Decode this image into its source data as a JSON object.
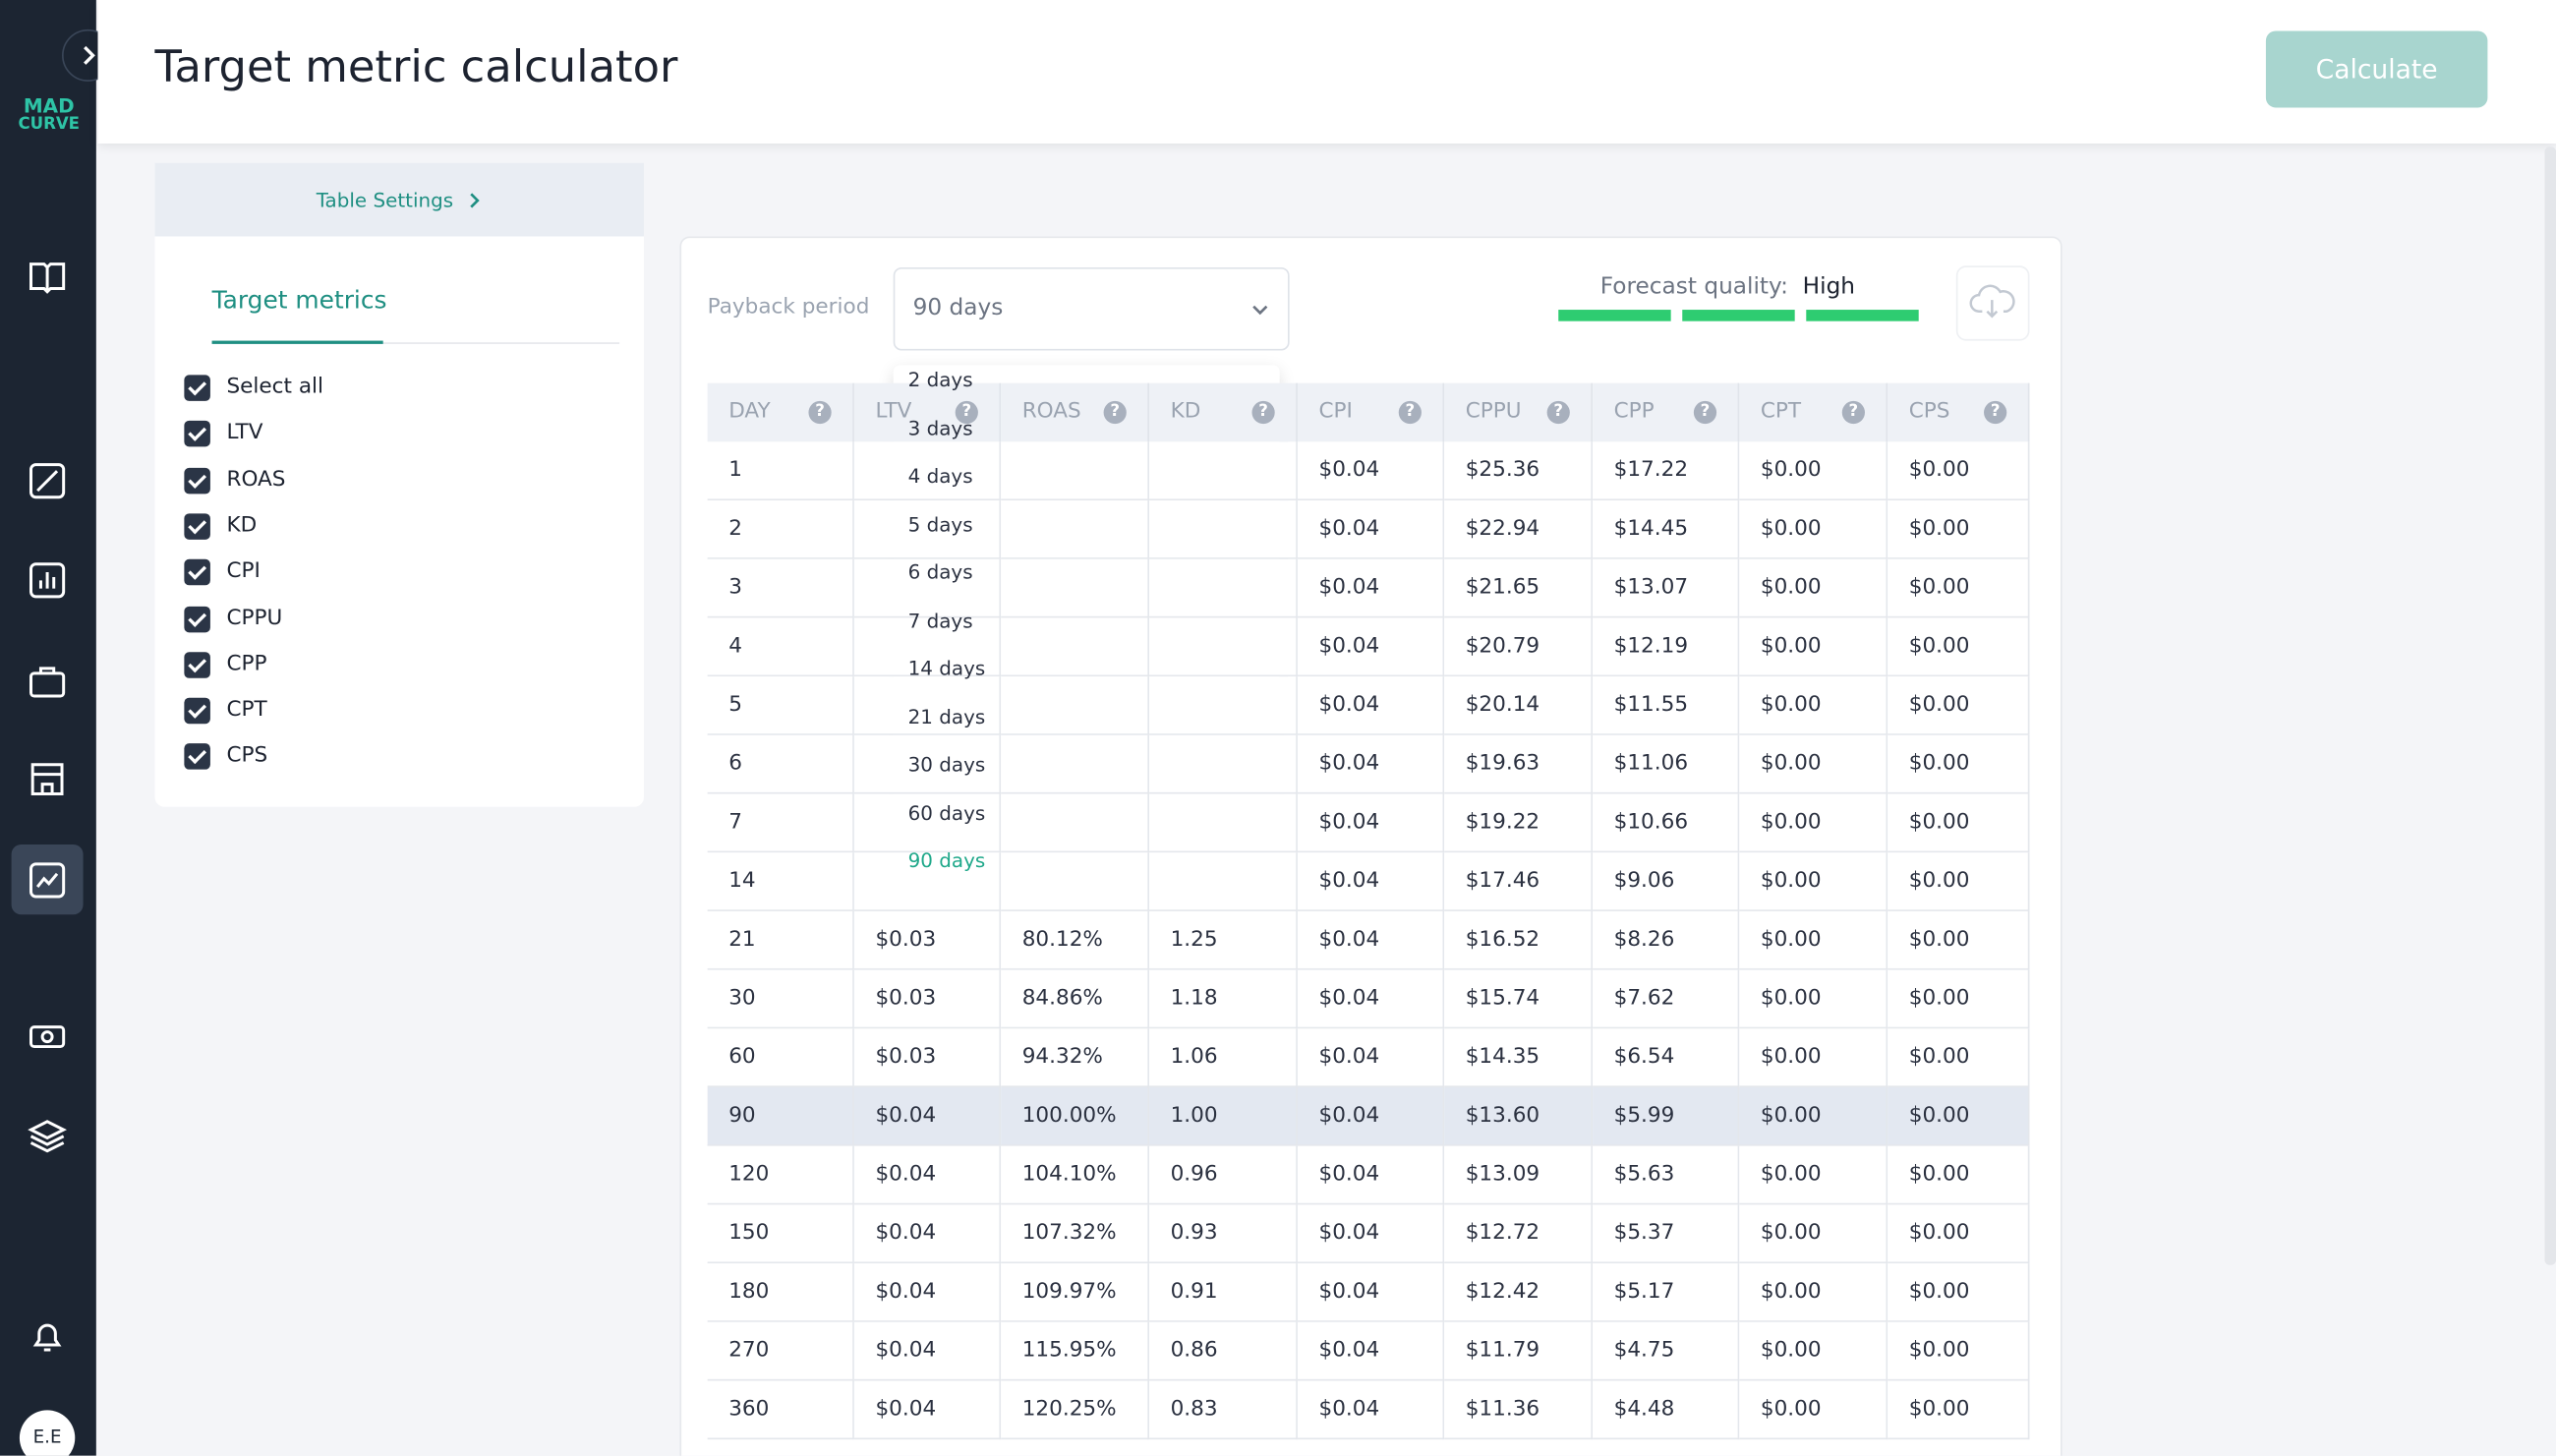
{
  "sidebar": {
    "logo": [
      "MAD",
      "CURVE"
    ],
    "avatar": "E.E"
  },
  "header": {
    "title": "Target metric calculator",
    "button": "Calculate"
  },
  "settings": {
    "link": "Table Settings",
    "panel_title": "Target metrics",
    "options": [
      "Select all",
      "LTV",
      "ROAS",
      "KD",
      "CPI",
      "CPPU",
      "CPP",
      "CPT",
      "CPS"
    ]
  },
  "controls": {
    "payback_label": "Payback period",
    "payback_value": "90 days",
    "forecast_label": "Forecast quality:",
    "forecast_value": "High"
  },
  "dropdown": {
    "options": [
      "2 days",
      "3 days",
      "4 days",
      "5 days",
      "6 days",
      "7 days",
      "14 days",
      "21 days",
      "30 days",
      "60 days",
      "90 days"
    ],
    "selected": 10
  },
  "table": {
    "columns": [
      "DAY",
      "LTV",
      "ROAS",
      "KD",
      "CPI",
      "CPPU",
      "CPP",
      "CPT",
      "CPS"
    ],
    "rows": [
      [
        "1",
        null,
        null,
        null,
        "$0.04",
        "$25.36",
        "$17.22",
        "$0.00",
        "$0.00"
      ],
      [
        "2",
        null,
        null,
        null,
        "$0.04",
        "$22.94",
        "$14.45",
        "$0.00",
        "$0.00"
      ],
      [
        "3",
        null,
        null,
        null,
        "$0.04",
        "$21.65",
        "$13.07",
        "$0.00",
        "$0.00"
      ],
      [
        "4",
        null,
        null,
        null,
        "$0.04",
        "$20.79",
        "$12.19",
        "$0.00",
        "$0.00"
      ],
      [
        "5",
        null,
        null,
        null,
        "$0.04",
        "$20.14",
        "$11.55",
        "$0.00",
        "$0.00"
      ],
      [
        "6",
        null,
        null,
        null,
        "$0.04",
        "$19.63",
        "$11.06",
        "$0.00",
        "$0.00"
      ],
      [
        "7",
        null,
        null,
        null,
        "$0.04",
        "$19.22",
        "$10.66",
        "$0.00",
        "$0.00"
      ],
      [
        "14",
        null,
        null,
        null,
        "$0.04",
        "$17.46",
        "$9.06",
        "$0.00",
        "$0.00"
      ],
      [
        "21",
        "$0.03",
        "80.12%",
        "1.25",
        "$0.04",
        "$16.52",
        "$8.26",
        "$0.00",
        "$0.00"
      ],
      [
        "30",
        "$0.03",
        "84.86%",
        "1.18",
        "$0.04",
        "$15.74",
        "$7.62",
        "$0.00",
        "$0.00"
      ],
      [
        "60",
        "$0.03",
        "94.32%",
        "1.06",
        "$0.04",
        "$14.35",
        "$6.54",
        "$0.00",
        "$0.00"
      ],
      [
        "90",
        "$0.04",
        "100.00%",
        "1.00",
        "$0.04",
        "$13.60",
        "$5.99",
        "$0.00",
        "$0.00"
      ],
      [
        "120",
        "$0.04",
        "104.10%",
        "0.96",
        "$0.04",
        "$13.09",
        "$5.63",
        "$0.00",
        "$0.00"
      ],
      [
        "150",
        "$0.04",
        "107.32%",
        "0.93",
        "$0.04",
        "$12.72",
        "$5.37",
        "$0.00",
        "$0.00"
      ],
      [
        "180",
        "$0.04",
        "109.97%",
        "0.91",
        "$0.04",
        "$12.42",
        "$5.17",
        "$0.00",
        "$0.00"
      ],
      [
        "270",
        "$0.04",
        "115.95%",
        "0.86",
        "$0.04",
        "$11.79",
        "$4.75",
        "$0.00",
        "$0.00"
      ],
      [
        "360",
        "$0.04",
        "120.25%",
        "0.83",
        "$0.04",
        "$11.36",
        "$4.48",
        "$0.00",
        "$0.00"
      ]
    ],
    "highlight_row": 11
  }
}
